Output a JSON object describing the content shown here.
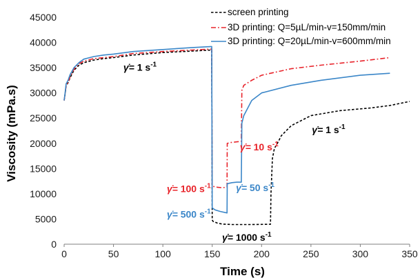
{
  "chart_data": {
    "type": "line",
    "title": "",
    "xlabel": "Time (s)",
    "ylabel": "Viscosity (mPa.s)",
    "xlim": [
      0,
      350
    ],
    "ylim": [
      0,
      45000
    ],
    "xticks": [
      0,
      50,
      100,
      150,
      200,
      250,
      300,
      350
    ],
    "yticks": [
      0,
      5000,
      10000,
      15000,
      20000,
      25000,
      30000,
      35000,
      40000,
      45000
    ],
    "grid": false,
    "legend_position": "top-right",
    "series": [
      {
        "name": "screen printing",
        "color": "#000000",
        "dash": "dashed",
        "x": [
          0,
          1,
          2,
          4,
          6,
          10,
          15,
          20,
          30,
          40,
          50,
          70,
          100,
          130,
          149.5,
          150,
          151,
          155,
          160,
          170,
          190,
          209,
          209.5,
          211,
          213,
          216,
          220,
          230,
          250,
          280,
          310,
          330,
          350
        ],
        "y": [
          28500,
          29800,
          31400,
          32000,
          33000,
          34500,
          35500,
          36000,
          36500,
          36800,
          37000,
          37500,
          38000,
          38300,
          38500,
          4800,
          4500,
          4200,
          4000,
          3900,
          3900,
          3950,
          10000,
          17000,
          19000,
          20000,
          21500,
          23500,
          25500,
          26500,
          27000,
          27500,
          28300
        ]
      },
      {
        "name": "3D printing: Q=5µL/min-v=150mm/min",
        "color": "#e8232a",
        "dash": "dashdot",
        "x": [
          0,
          1,
          2,
          4,
          6,
          10,
          15,
          20,
          30,
          40,
          50,
          70,
          100,
          130,
          149.5,
          150,
          155,
          160,
          165,
          165.2,
          170,
          175,
          179.5,
          180,
          182,
          190,
          200,
          230,
          260,
          300,
          330
        ],
        "y": [
          28500,
          29800,
          31500,
          32000,
          33200,
          34700,
          35800,
          36300,
          36800,
          37000,
          37200,
          37800,
          38200,
          38500,
          38700,
          11500,
          11300,
          11200,
          11300,
          20000,
          20200,
          20300,
          20400,
          30500,
          31500,
          32500,
          33500,
          34800,
          35500,
          36300,
          37000
        ]
      },
      {
        "name": "3D printing: Q=20µL/min-v=600mm/min",
        "color": "#3a86c8",
        "dash": "solid",
        "x": [
          0,
          1,
          2,
          4,
          6,
          10,
          15,
          20,
          30,
          40,
          50,
          70,
          100,
          130,
          149.5,
          150,
          153,
          158,
          165,
          165.2,
          170,
          175,
          179.5,
          180,
          182,
          190,
          200,
          230,
          260,
          300,
          330
        ],
        "y": [
          28500,
          30000,
          31800,
          32500,
          33600,
          35000,
          36000,
          36700,
          37200,
          37500,
          37700,
          38200,
          38600,
          39000,
          39200,
          7200,
          6800,
          6500,
          6200,
          12000,
          12200,
          12300,
          12300,
          24000,
          25500,
          28500,
          30000,
          31500,
          32500,
          33500,
          33900
        ]
      }
    ],
    "annotations": [
      {
        "rate": "1",
        "x": 60,
        "y": 34400,
        "color": "#000000"
      },
      {
        "rate": "100",
        "x": 104,
        "y": 10300,
        "color": "#e8232a"
      },
      {
        "rate": "500",
        "x": 104,
        "y": 5300,
        "color": "#3a86c8"
      },
      {
        "rate": "10",
        "x": 178,
        "y": 18600,
        "color": "#e8232a"
      },
      {
        "rate": "50",
        "x": 174,
        "y": 10500,
        "color": "#3a86c8"
      },
      {
        "rate": "1000",
        "x": 160,
        "y": 700,
        "color": "#000000"
      },
      {
        "rate": "1",
        "x": 251,
        "y": 22000,
        "color": "#000000"
      }
    ],
    "annotation_prefix": "γ̇= ",
    "annotation_unit": " s",
    "annotation_exponent": "-1"
  }
}
